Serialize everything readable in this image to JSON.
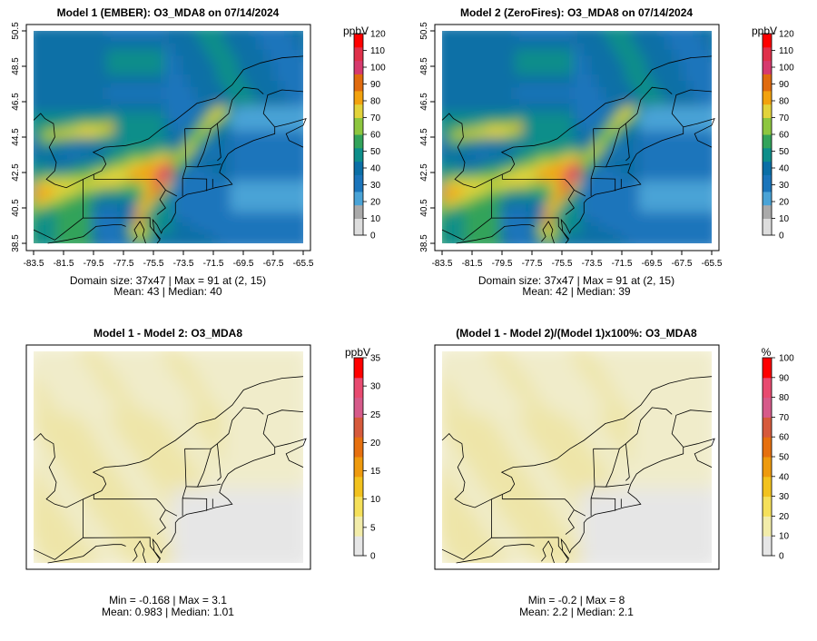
{
  "panels": [
    {
      "title": "Model 1 (EMBER): O3_MDA8 on 07/14/2024",
      "field": "model",
      "axes": true,
      "x_ticks": [
        "-83.5",
        "-81.5",
        "-79.5",
        "-77.5",
        "-75.5",
        "-73.5",
        "-71.5",
        "-69.5",
        "-67.5",
        "-65.5"
      ],
      "y_ticks": [
        "38.5",
        "40.5",
        "42.5",
        "44.5",
        "46.5",
        "48.5",
        "50.5"
      ],
      "stats_line1": "Domain size: 37x47 | Max = 91 at (2, 15)",
      "stats_line2": "Mean: 43 |  Median: 40"
    },
    {
      "title": "Model 2 (ZeroFires): O3_MDA8 on 07/14/2024",
      "field": "model",
      "axes": true,
      "x_ticks": [
        "-83.5",
        "-81.5",
        "-79.5",
        "-77.5",
        "-75.5",
        "-73.5",
        "-71.5",
        "-69.5",
        "-67.5",
        "-65.5"
      ],
      "y_ticks": [
        "38.5",
        "40.5",
        "42.5",
        "44.5",
        "46.5",
        "48.5",
        "50.5"
      ],
      "stats_line1": "Domain size: 37x47 | Max = 91 at (2, 15)",
      "stats_line2": "Mean: 42 |  Median: 39"
    },
    {
      "title": "Model 1 - Model 2: O3_MDA8",
      "field": "diff",
      "axes": false,
      "x_ticks": [],
      "y_ticks": [],
      "stats_line1": "Min = -0.168 | Max = 3.1",
      "stats_line2": "Mean: 0.983 |  Median: 1.01"
    },
    {
      "title": "(Model 1 - Model 2)/(Model 1)x100%: O3_MDA8",
      "field": "diff",
      "axes": false,
      "x_ticks": [],
      "y_ticks": [],
      "stats_line1": "Min = -0.2 | Max = 8",
      "stats_line2": "Mean: 2.2 |  Median: 2.1"
    }
  ],
  "colorbars": [
    {
      "unit": "ppbV",
      "ticks": [
        "0",
        "10",
        "20",
        "30",
        "40",
        "50",
        "60",
        "70",
        "80",
        "90",
        "100",
        "110",
        "120"
      ],
      "palette": [
        "#dddddd",
        "#aaaaaa",
        "#4aa3d6",
        "#1b75bb",
        "#0b6fa6",
        "#0d8e8a",
        "#33a35a",
        "#8dc63f",
        "#e2d33b",
        "#f2a20e",
        "#e06b0e",
        "#d63a6e",
        "#e0304a",
        "#ff0000"
      ]
    },
    {
      "unit": "ppbV",
      "ticks": [
        "0",
        "10",
        "20",
        "30",
        "40",
        "50",
        "60",
        "70",
        "80",
        "90",
        "100",
        "110",
        "120"
      ],
      "palette": [
        "#dddddd",
        "#aaaaaa",
        "#4aa3d6",
        "#1b75bb",
        "#0b6fa6",
        "#0d8e8a",
        "#33a35a",
        "#8dc63f",
        "#e2d33b",
        "#f2a20e",
        "#e06b0e",
        "#d63a6e",
        "#e0304a",
        "#ff0000"
      ]
    },
    {
      "unit": "ppbV",
      "ticks": [
        "0",
        "5",
        "10",
        "15",
        "20",
        "25",
        "30",
        "35"
      ],
      "palette": [
        "#e6e6e6",
        "#f2ecaa",
        "#f5e05a",
        "#f2c21e",
        "#ee9a0e",
        "#e6700f",
        "#d65a3c",
        "#d65a8a",
        "#e84a70",
        "#ff0000"
      ]
    },
    {
      "unit": "%",
      "ticks": [
        "0",
        "10",
        "20",
        "30",
        "40",
        "50",
        "60",
        "70",
        "80",
        "90",
        "100"
      ],
      "palette": [
        "#e6e6e6",
        "#f2ecaa",
        "#f5e05a",
        "#f2c21e",
        "#ee9a0e",
        "#e6700f",
        "#d65a3c",
        "#d65a8a",
        "#e84a70",
        "#ff0000"
      ]
    }
  ]
}
